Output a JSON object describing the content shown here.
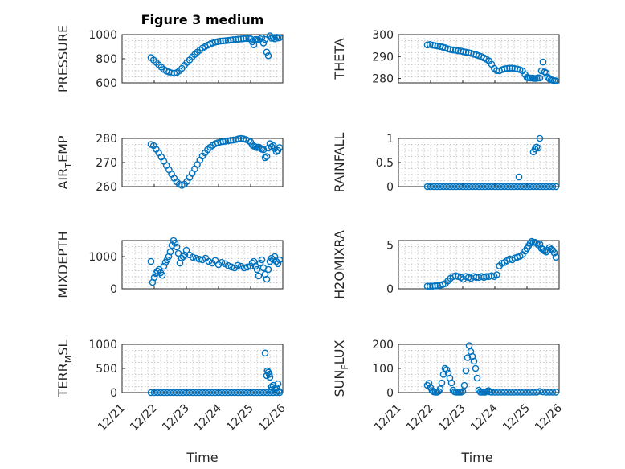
{
  "chart_data": {
    "type": "scatter",
    "title": "Figure 3 medium",
    "marker": "o",
    "marker_color": "#0072BD",
    "xlabel": "Time",
    "x_ticks": [
      "12/21",
      "12/22",
      "12/23",
      "12/24",
      "12/25",
      "12/26"
    ],
    "xlim": [
      0,
      5
    ],
    "note": "x values are days after 12/21",
    "panels": [
      {
        "name": "pressure",
        "ylabel": "PRESSURE",
        "ylabel_sub": "",
        "ylabel_tail": "",
        "ylim": [
          600,
          1000
        ],
        "yticks": [
          "600",
          "800",
          "1000"
        ],
        "yticks_values": [
          600,
          800,
          1000
        ],
        "x": [
          0.9,
          0.98,
          1.06,
          1.14,
          1.22,
          1.3,
          1.38,
          1.46,
          1.54,
          1.62,
          1.7,
          1.78,
          1.86,
          1.94,
          2.02,
          2.1,
          2.18,
          2.26,
          2.34,
          2.42,
          2.5,
          2.58,
          2.66,
          2.74,
          2.82,
          2.9,
          2.98,
          3.06,
          3.14,
          3.22,
          3.3,
          3.38,
          3.46,
          3.54,
          3.62,
          3.7,
          3.78,
          3.86,
          3.94,
          4.0,
          4.05,
          4.1,
          4.15,
          4.2,
          4.25,
          4.3,
          4.35,
          4.4,
          4.45,
          4.5,
          4.55,
          4.6,
          4.65,
          4.7,
          4.75,
          4.8,
          4.85,
          4.9
        ],
        "y": [
          810,
          790,
          770,
          750,
          730,
          712,
          698,
          690,
          682,
          680,
          685,
          700,
          720,
          745,
          770,
          790,
          815,
          835,
          855,
          872,
          888,
          900,
          912,
          922,
          930,
          938,
          942,
          946,
          948,
          950,
          952,
          955,
          958,
          960,
          962,
          964,
          966,
          968,
          968,
          965,
          940,
          915,
          960,
          958,
          955,
          965,
          975,
          930,
          960,
          855,
          825,
          990,
          970,
          975,
          965,
          978,
          972,
          975
        ]
      },
      {
        "name": "theta",
        "ylabel": "THETA",
        "ylabel_sub": "",
        "ylabel_tail": "",
        "ylim": [
          278,
          300
        ],
        "yticks": [
          "280",
          "290",
          "300"
        ],
        "yticks_values": [
          280,
          290,
          300
        ],
        "x": [
          0.9,
          0.98,
          1.06,
          1.14,
          1.22,
          1.3,
          1.38,
          1.46,
          1.54,
          1.62,
          1.7,
          1.78,
          1.86,
          1.94,
          2.02,
          2.1,
          2.18,
          2.26,
          2.34,
          2.42,
          2.5,
          2.58,
          2.66,
          2.74,
          2.82,
          2.9,
          2.98,
          3.06,
          3.14,
          3.22,
          3.3,
          3.38,
          3.46,
          3.54,
          3.62,
          3.7,
          3.78,
          3.86,
          3.94,
          4.0,
          4.05,
          4.1,
          4.15,
          4.2,
          4.25,
          4.3,
          4.35,
          4.4,
          4.45,
          4.5,
          4.55,
          4.6,
          4.65,
          4.7,
          4.75,
          4.8,
          4.85,
          4.9
        ],
        "y": [
          295.3,
          295.5,
          295.2,
          295.0,
          294.8,
          294.6,
          294.3,
          294.0,
          293.5,
          293.2,
          293.0,
          292.9,
          292.6,
          292.5,
          292.2,
          292.0,
          291.8,
          291.5,
          291.1,
          290.8,
          290.4,
          290.0,
          289.4,
          288.8,
          288.0,
          286.5,
          284.6,
          283.6,
          283.5,
          284.0,
          284.4,
          284.6,
          284.7,
          284.7,
          284.5,
          284.3,
          284.0,
          283.5,
          281.8,
          280.5,
          280.3,
          280.2,
          280.2,
          280.1,
          280.0,
          280.1,
          280.3,
          280.2,
          283.5,
          287.5,
          283.0,
          282.5,
          280.6,
          279.8,
          279.4,
          279.2,
          279.0,
          278.9
        ]
      },
      {
        "name": "air-temp",
        "ylabel": "AIR",
        "ylabel_sub": "T",
        "ylabel_tail": "EMP",
        "ylim": [
          260,
          280
        ],
        "yticks": [
          "260",
          "270",
          "280"
        ],
        "yticks_values": [
          260,
          270,
          280
        ],
        "x": [
          0.9,
          0.98,
          1.06,
          1.14,
          1.22,
          1.3,
          1.38,
          1.46,
          1.54,
          1.62,
          1.7,
          1.78,
          1.86,
          1.94,
          2.02,
          2.1,
          2.18,
          2.26,
          2.34,
          2.42,
          2.5,
          2.58,
          2.66,
          2.74,
          2.82,
          2.9,
          2.98,
          3.06,
          3.14,
          3.22,
          3.3,
          3.38,
          3.46,
          3.54,
          3.62,
          3.7,
          3.78,
          3.86,
          3.94,
          4.0,
          4.05,
          4.1,
          4.15,
          4.2,
          4.25,
          4.3,
          4.35,
          4.4,
          4.45,
          4.5,
          4.55,
          4.6,
          4.65,
          4.7,
          4.75,
          4.8,
          4.85,
          4.9
        ],
        "y": [
          277.5,
          277.0,
          275.5,
          274.0,
          272.3,
          270.5,
          268.8,
          267.0,
          265.2,
          263.5,
          262.0,
          261.0,
          260.5,
          261.0,
          262.2,
          263.8,
          265.5,
          267.4,
          269.2,
          271.0,
          272.7,
          274.0,
          275.3,
          276.3,
          277.1,
          277.8,
          278.2,
          278.5,
          278.7,
          278.8,
          279.0,
          279.2,
          279.3,
          279.5,
          279.8,
          280.0,
          279.8,
          279.5,
          279.0,
          278.5,
          277.3,
          276.8,
          276.5,
          276.2,
          276.4,
          276.0,
          275.5,
          275.3,
          272.0,
          272.5,
          276.0,
          277.8,
          276.5,
          277.0,
          275.8,
          274.5,
          275.0,
          276.2
        ]
      },
      {
        "name": "rainfall",
        "ylabel": "RAINFALL",
        "ylabel_sub": "",
        "ylabel_tail": "",
        "ylim": [
          0,
          1
        ],
        "yticks": [
          "0",
          "0.5",
          "1"
        ],
        "yticks_values": [
          0,
          0.5,
          1
        ],
        "x": [
          0.9,
          1.0,
          1.1,
          1.2,
          1.3,
          1.4,
          1.5,
          1.6,
          1.7,
          1.8,
          1.9,
          2.0,
          2.1,
          2.2,
          2.3,
          2.4,
          2.5,
          2.6,
          2.7,
          2.8,
          2.9,
          3.0,
          3.1,
          3.2,
          3.3,
          3.4,
          3.5,
          3.6,
          3.7,
          3.8,
          3.9,
          4.0,
          4.1,
          4.2,
          4.3,
          4.4,
          4.5,
          4.6,
          4.7,
          4.8,
          4.9,
          3.75,
          4.2,
          4.25,
          4.3,
          4.35,
          4.4
        ],
        "y": [
          0,
          0,
          0,
          0,
          0,
          0,
          0,
          0,
          0,
          0,
          0,
          0,
          0,
          0,
          0,
          0,
          0,
          0,
          0,
          0,
          0,
          0,
          0,
          0,
          0,
          0,
          0,
          0,
          0,
          0,
          0,
          0,
          0,
          0,
          0,
          0,
          0,
          0,
          0,
          0,
          0,
          0.2,
          0.72,
          0.78,
          0.82,
          0.8,
          1.0
        ]
      },
      {
        "name": "mixdepth",
        "ylabel": "MIXDEPTH",
        "ylabel_sub": "",
        "ylabel_tail": "",
        "ylim": [
          0,
          1500
        ],
        "yticks": [
          "0",
          "1000"
        ],
        "yticks_values": [
          0,
          1000
        ],
        "x": [
          0.9,
          0.95,
          1.0,
          1.05,
          1.1,
          1.15,
          1.2,
          1.25,
          1.3,
          1.35,
          1.4,
          1.45,
          1.5,
          1.55,
          1.6,
          1.65,
          1.7,
          1.75,
          1.8,
          1.85,
          1.9,
          1.95,
          2.0,
          2.1,
          2.2,
          2.3,
          2.4,
          2.5,
          2.6,
          2.7,
          2.8,
          2.9,
          3.0,
          3.1,
          3.2,
          3.3,
          3.4,
          3.5,
          3.6,
          3.7,
          3.8,
          3.9,
          4.0,
          4.05,
          4.1,
          4.15,
          4.2,
          4.25,
          4.3,
          4.35,
          4.4,
          4.45,
          4.5,
          4.55,
          4.6,
          4.65,
          4.7,
          4.75,
          4.8,
          4.85,
          4.9
        ],
        "y": [
          850,
          200,
          350,
          480,
          550,
          600,
          500,
          420,
          700,
          820,
          900,
          1000,
          1150,
          1350,
          1500,
          1420,
          1300,
          1100,
          800,
          950,
          1000,
          1050,
          1200,
          1050,
          980,
          950,
          920,
          900,
          950,
          850,
          800,
          880,
          750,
          820,
          780,
          720,
          680,
          650,
          730,
          700,
          650,
          680,
          700,
          800,
          850,
          700,
          600,
          400,
          800,
          900,
          650,
          450,
          300,
          600,
          850,
          950,
          900,
          1000,
          850,
          780,
          900
        ]
      },
      {
        "name": "h2omixra",
        "ylabel": "H2OMIXRA",
        "ylabel_sub": "",
        "ylabel_tail": "",
        "ylim": [
          0,
          5.5
        ],
        "yticks": [
          "0",
          "5"
        ],
        "yticks_values": [
          0,
          5
        ],
        "x": [
          0.9,
          0.98,
          1.06,
          1.14,
          1.22,
          1.3,
          1.38,
          1.46,
          1.54,
          1.62,
          1.7,
          1.78,
          1.86,
          1.94,
          2.02,
          2.1,
          2.18,
          2.26,
          2.34,
          2.42,
          2.5,
          2.58,
          2.66,
          2.74,
          2.82,
          2.9,
          2.98,
          3.06,
          3.14,
          3.22,
          3.3,
          3.38,
          3.46,
          3.54,
          3.62,
          3.7,
          3.78,
          3.86,
          3.94,
          4.0,
          4.05,
          4.1,
          4.15,
          4.2,
          4.25,
          4.3,
          4.35,
          4.4,
          4.45,
          4.5,
          4.55,
          4.6,
          4.65,
          4.7,
          4.75,
          4.8,
          4.85,
          4.9
        ],
        "y": [
          0.3,
          0.3,
          0.3,
          0.35,
          0.35,
          0.4,
          0.5,
          0.6,
          0.9,
          1.2,
          1.4,
          1.5,
          1.4,
          1.3,
          1.1,
          1.4,
          1.3,
          1.2,
          1.4,
          1.3,
          1.3,
          1.4,
          1.3,
          1.4,
          1.4,
          1.5,
          1.4,
          1.6,
          2.6,
          2.9,
          3.0,
          3.2,
          3.4,
          3.3,
          3.5,
          3.6,
          3.7,
          3.9,
          4.3,
          4.6,
          4.9,
          5.2,
          5.4,
          5.3,
          5.3,
          5.2,
          5.0,
          5.1,
          4.6,
          4.5,
          4.3,
          4.2,
          4.4,
          4.7,
          4.5,
          4.4,
          4.1,
          3.6
        ]
      },
      {
        "name": "terr-msl",
        "ylabel": "TERR",
        "ylabel_sub": "M",
        "ylabel_tail": "SL",
        "ylim": [
          0,
          1000
        ],
        "yticks": [
          "0",
          "500",
          "1000"
        ],
        "yticks_values": [
          0,
          500,
          1000
        ],
        "x": [
          0.9,
          1.0,
          1.1,
          1.2,
          1.3,
          1.4,
          1.5,
          1.6,
          1.7,
          1.8,
          1.9,
          2.0,
          2.1,
          2.2,
          2.3,
          2.4,
          2.5,
          2.6,
          2.7,
          2.8,
          2.9,
          3.0,
          3.1,
          3.2,
          3.3,
          3.4,
          3.5,
          3.6,
          3.7,
          3.8,
          3.9,
          4.0,
          4.1,
          4.2,
          4.3,
          4.4,
          4.5,
          4.6,
          4.7,
          4.8,
          4.9,
          4.45,
          4.5,
          4.52,
          4.55,
          4.58,
          4.6,
          4.62,
          4.65,
          4.7,
          4.75,
          4.8,
          4.85,
          4.88
        ],
        "y": [
          0,
          0,
          0,
          0,
          0,
          0,
          0,
          0,
          0,
          0,
          0,
          0,
          0,
          0,
          0,
          0,
          0,
          0,
          0,
          0,
          0,
          0,
          0,
          0,
          0,
          0,
          0,
          0,
          0,
          0,
          0,
          0,
          0,
          0,
          0,
          0,
          0,
          0,
          0,
          0,
          0,
          820,
          350,
          450,
          420,
          380,
          320,
          50,
          120,
          150,
          80,
          100,
          180,
          30
        ]
      },
      {
        "name": "sun-flux",
        "ylabel": "SUN",
        "ylabel_sub": "F",
        "ylabel_tail": "LUX",
        "ylim": [
          0,
          200
        ],
        "yticks": [
          "0",
          "100",
          "200"
        ],
        "yticks_values": [
          0,
          100,
          200
        ],
        "x": [
          0.9,
          0.95,
          1.0,
          1.05,
          1.1,
          1.15,
          1.2,
          1.25,
          1.3,
          1.35,
          1.4,
          1.45,
          1.5,
          1.55,
          1.6,
          1.65,
          1.7,
          1.75,
          1.8,
          1.85,
          1.9,
          1.95,
          2.0,
          2.05,
          2.1,
          2.15,
          2.2,
          2.25,
          2.3,
          2.35,
          2.4,
          2.45,
          2.5,
          2.55,
          2.6,
          2.65,
          2.7,
          2.75,
          2.8,
          2.85,
          2.9,
          3.0,
          3.1,
          3.2,
          3.3,
          3.4,
          3.5,
          3.6,
          3.7,
          3.8,
          3.9,
          4.0,
          4.1,
          4.2,
          4.3,
          4.4,
          4.5,
          4.6,
          4.7,
          4.8,
          4.9
        ],
        "y": [
          30,
          38,
          20,
          8,
          3,
          2,
          2,
          5,
          15,
          40,
          75,
          100,
          95,
          80,
          60,
          40,
          10,
          3,
          2,
          2,
          2,
          2,
          5,
          30,
          90,
          145,
          195,
          170,
          150,
          130,
          100,
          60,
          10,
          2,
          2,
          2,
          2,
          5,
          8,
          3,
          2,
          2,
          2,
          2,
          2,
          2,
          2,
          2,
          2,
          2,
          2,
          2,
          2,
          2,
          2,
          5,
          3,
          2,
          2,
          2,
          2
        ]
      }
    ]
  }
}
